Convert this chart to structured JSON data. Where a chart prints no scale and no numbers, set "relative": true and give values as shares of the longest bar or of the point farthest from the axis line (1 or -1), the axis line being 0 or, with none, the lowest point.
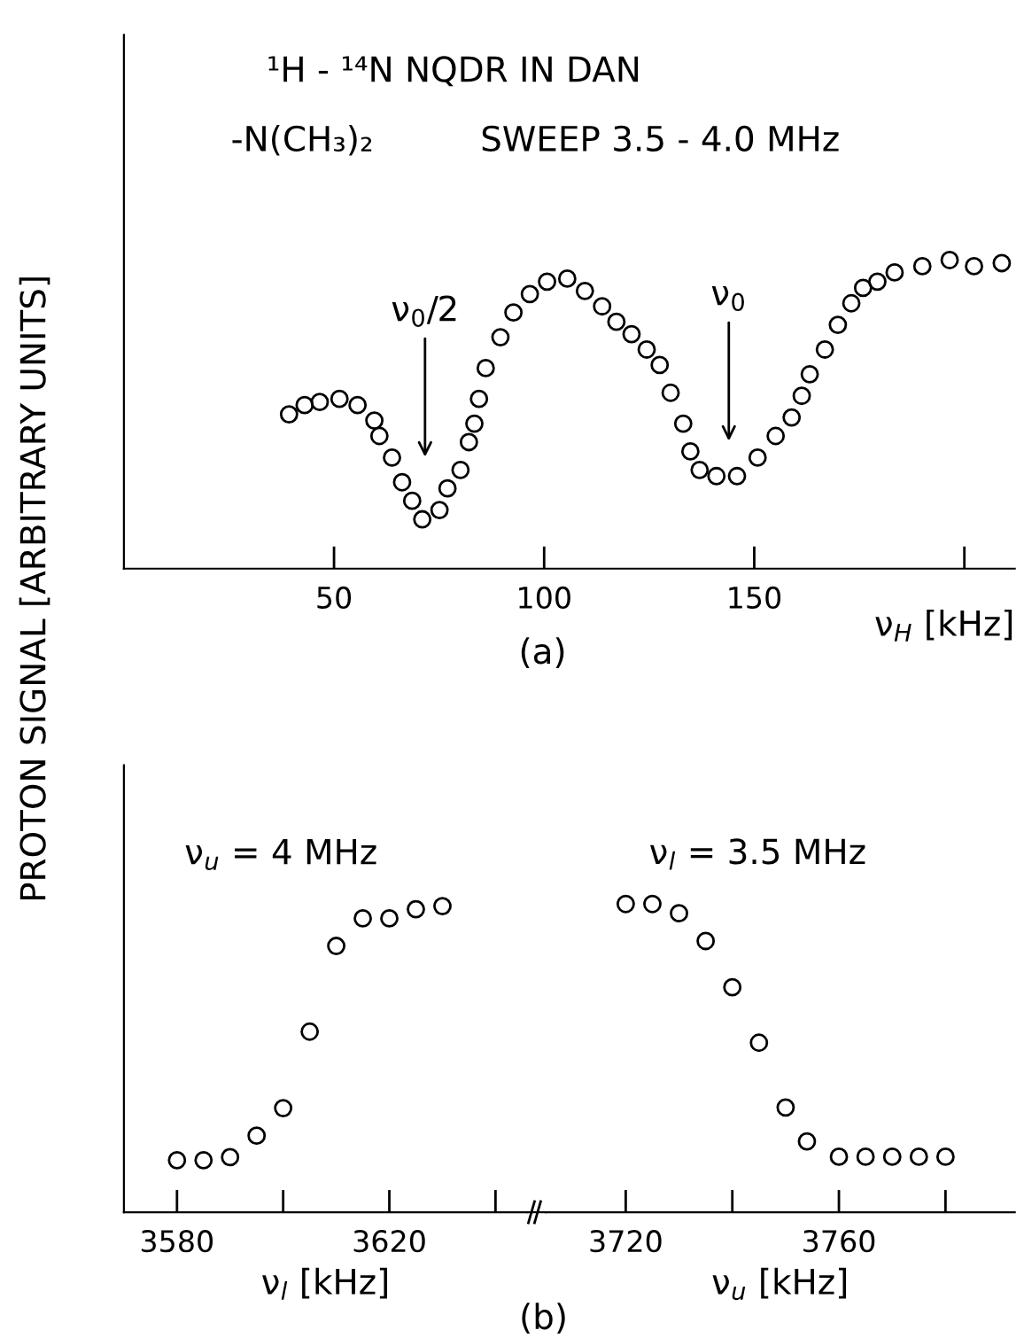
{
  "chart_data": [
    {
      "type": "scatter",
      "title": "¹H - ¹⁴N NQDR IN DAN",
      "xlabel": "ν$_{H}$ [kHz]",
      "ylabel": "PROTON SIGNAL [ARBITRARY UNITS]",
      "relative": true,
      "marker": "circle",
      "grid": false,
      "xlim": [
        0,
        212
      ],
      "xticks": [
        50,
        100,
        150,
        {
          "value": 200,
          "label": null
        }
      ],
      "series": [
        {
          "color": "#000000",
          "x": [
            39.3,
            43.0,
            46.6,
            51.3,
            55.6,
            59.6,
            60.8,
            63.8,
            66.2,
            68.6,
            71.0,
            75.1,
            77.0,
            80.1,
            82.1,
            83.4,
            84.5,
            86.1,
            89.6,
            92.7,
            96.6,
            100.7,
            105.5,
            109.7,
            113.8,
            117.2,
            120.8,
            124.4,
            127.5,
            130.1,
            133.1,
            134.8,
            137.0,
            141.0,
            145.9,
            150.8,
            155.1,
            158.9,
            161.3,
            163.2,
            166.8,
            169.9,
            173.1,
            175.9,
            179.3,
            183.4,
            190.0,
            196.5,
            202.3,
            208.9
          ],
          "values": [
            0.5,
            0.53,
            0.54,
            0.55,
            0.53,
            0.48,
            0.43,
            0.36,
            0.28,
            0.22,
            0.16,
            0.19,
            0.26,
            0.32,
            0.41,
            0.47,
            0.55,
            0.65,
            0.75,
            0.83,
            0.89,
            0.93,
            0.94,
            0.9,
            0.85,
            0.8,
            0.76,
            0.71,
            0.66,
            0.57,
            0.47,
            0.38,
            0.32,
            0.3,
            0.3,
            0.36,
            0.43,
            0.49,
            0.56,
            0.63,
            0.71,
            0.79,
            0.86,
            0.91,
            0.93,
            0.96,
            0.98,
            1.0,
            0.98,
            0.99
          ]
        }
      ],
      "annotations": [
        "-N(CH₃)₂",
        "SWEEP 3.5 - 4.0 MHz",
        "ν$_{0}$/2",
        "ν$_{0}$",
        "(a)"
      ]
    },
    {
      "type": "scatter",
      "xlabel": "ν$_{l}$ [kHz]",
      "relative": true,
      "marker": "circle",
      "grid": false,
      "xlim": [
        3570,
        3646
      ],
      "xticks": [
        3580,
        {
          "value": 3600,
          "label": null
        },
        3620,
        {
          "value": 3640,
          "label": null
        }
      ],
      "series": [
        {
          "color": "#000000",
          "x": [
            3580,
            3585,
            3590,
            3595,
            3600,
            3605,
            3610,
            3615,
            3620,
            3625,
            3630
          ],
          "values": [
            0.17,
            0.17,
            0.18,
            0.25,
            0.34,
            0.59,
            0.87,
            0.96,
            0.96,
            0.99,
            1.0
          ]
        }
      ],
      "annotations": [
        "ν$_{u}$ = 4 MHz",
        "(b)"
      ]
    },
    {
      "type": "scatter",
      "xlabel": "ν$_{u}$ [kHz]",
      "relative": true,
      "marker": "circle",
      "grid": false,
      "xlim": [
        3705,
        3793
      ],
      "xticks": [
        3720,
        {
          "value": 3740,
          "label": null
        },
        3760,
        {
          "value": 3780,
          "label": null
        }
      ],
      "series": [
        {
          "color": "#000000",
          "x": [
            3720,
            3725,
            3730,
            3735,
            3740,
            3745,
            3750,
            3754,
            3760,
            3765,
            3770,
            3775,
            3780
          ],
          "values": [
            1.0,
            1.0,
            0.97,
            0.88,
            0.73,
            0.55,
            0.34,
            0.23,
            0.18,
            0.18,
            0.18,
            0.18,
            0.18
          ]
        }
      ],
      "annotations": [
        "ν$_{l}$ = 3.5 MHz"
      ]
    }
  ]
}
